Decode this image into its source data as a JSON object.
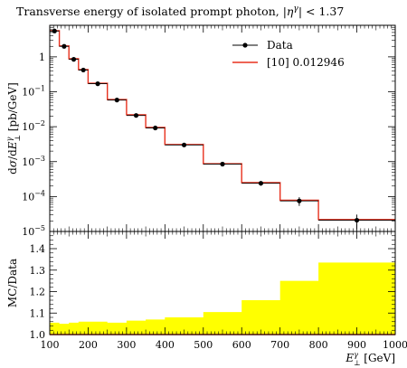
{
  "title": "Transverse energy of isolated prompt photon, |η^γ| < 1.37",
  "chart_data": [
    {
      "type": "line",
      "panel": "main",
      "title": "Transverse energy of isolated prompt photon, |η^γ| < 1.37",
      "xlabel": "E_⊥^γ [GeV]",
      "ylabel": "dσ/dE_⊥^γ [pb/GeV]",
      "xlim": [
        100,
        1000
      ],
      "ylim": [
        1e-05,
        8
      ],
      "yscale": "log",
      "ytick_labels": [
        "1",
        "10^-1",
        "10^-2",
        "10^-3",
        "10^-4",
        "10^-5"
      ],
      "legend_position": "top-right",
      "legend": [
        "Data",
        "[10] 0.012946"
      ],
      "bin_edges": [
        100,
        125,
        150,
        175,
        200,
        250,
        300,
        350,
        400,
        500,
        600,
        700,
        800,
        1000
      ],
      "series": [
        {
          "name": "Data",
          "style": "points-with-error-bars",
          "color": "#000000",
          "x": [
            112.5,
            137.5,
            162.5,
            187.5,
            225,
            275,
            325,
            375,
            450,
            550,
            650,
            750,
            900
          ],
          "y": [
            5.5,
            2.0,
            0.85,
            0.42,
            0.17,
            0.058,
            0.021,
            0.0092,
            0.003,
            0.00085,
            0.00024,
            7.5e-05,
            2.1e-05
          ],
          "yerr_rel": [
            0.04,
            0.04,
            0.04,
            0.04,
            0.04,
            0.05,
            0.05,
            0.06,
            0.07,
            0.1,
            0.15,
            0.28,
            0.45
          ]
        },
        {
          "name": "[10] 0.012946",
          "style": "histogram",
          "color": "#e8311e",
          "values": [
            5.6,
            2.05,
            0.88,
            0.43,
            0.175,
            0.06,
            0.022,
            0.0095,
            0.0031,
            0.00087,
            0.00025,
            7.8e-05,
            2.2e-05
          ]
        }
      ]
    },
    {
      "type": "area",
      "panel": "ratio",
      "ylabel": "MC/Data",
      "xlabel": "E_⊥^γ [GeV]",
      "xlim": [
        100,
        1000
      ],
      "ylim": [
        1.0,
        1.48
      ],
      "ytick_labels": [
        "1.0",
        "1.1",
        "1.2",
        "1.3",
        "1.4"
      ],
      "xtick_labels": [
        "100",
        "200",
        "300",
        "400",
        "500",
        "600",
        "700",
        "800",
        "900",
        "1000"
      ],
      "bin_edges": [
        100,
        125,
        150,
        175,
        200,
        250,
        300,
        350,
        400,
        500,
        600,
        700,
        800,
        1000
      ],
      "band_color": "#ffff00",
      "line_color": "#e8311e",
      "band_upper": [
        1.055,
        1.05,
        1.055,
        1.06,
        1.06,
        1.055,
        1.065,
        1.07,
        1.08,
        1.105,
        1.16,
        1.25,
        1.335
      ],
      "ratio": [
        1.0,
        1.0,
        1.0,
        1.0,
        1.0,
        1.0,
        1.0,
        1.0,
        1.0,
        1.0,
        1.0,
        1.0,
        1.0
      ]
    }
  ]
}
